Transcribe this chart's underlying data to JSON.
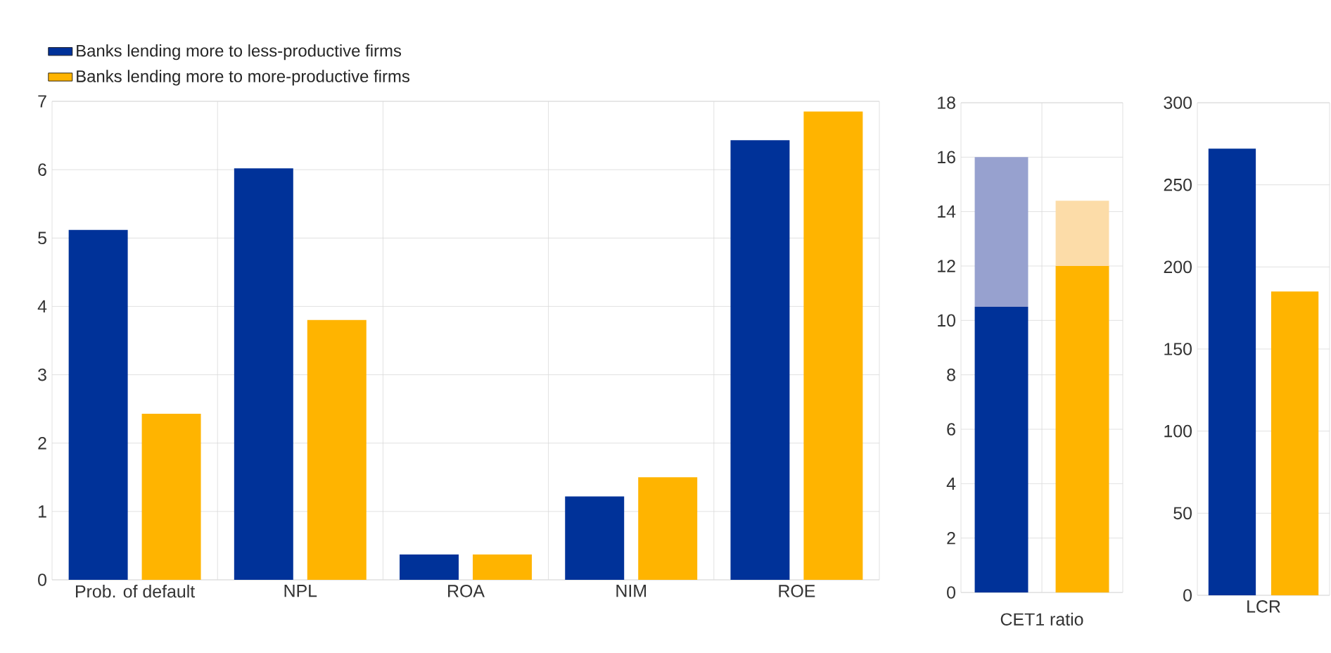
{
  "chart_data": [
    {
      "type": "bar",
      "categories": [
        "Prob. of default",
        "NPL",
        "ROA",
        "NIM",
        "ROE"
      ],
      "series": [
        {
          "name": "Banks lending more to less-productive firms",
          "color": "#003299",
          "values": [
            5.12,
            6.02,
            0.37,
            1.22,
            6.43
          ]
        },
        {
          "name": "Banks lending more to more-productive firms",
          "color": "#ffb400",
          "values": [
            2.43,
            3.8,
            0.37,
            1.5,
            6.85
          ]
        }
      ],
      "ylim": [
        0,
        7
      ],
      "yticks": [
        0,
        1,
        2,
        3,
        4,
        5,
        6,
        7
      ],
      "grid": true,
      "legend": "top left"
    },
    {
      "type": "bar",
      "categories": [
        null,
        null
      ],
      "xlabel": "CET1 ratio",
      "stacked": true,
      "series": [
        {
          "colors": [
            "#003299",
            "#ffb400"
          ],
          "values": [
            10.5,
            12
          ]
        },
        {
          "colors": [
            "#97a1cf",
            "#fcdca8"
          ],
          "values": [
            5.5,
            2.4
          ]
        }
      ],
      "ylim": [
        0,
        18
      ],
      "yticks": [
        0,
        2,
        4,
        6,
        8,
        10,
        12,
        14,
        16,
        18
      ],
      "grid": true
    },
    {
      "type": "bar",
      "categories": [
        "LCR"
      ],
      "series": [
        {
          "color": "#003299",
          "values": [
            272
          ]
        },
        {
          "color": "#ffb400",
          "values": [
            185
          ]
        }
      ],
      "ylim": [
        0,
        300
      ],
      "yticks": [
        0,
        50,
        100,
        150,
        200,
        250,
        300
      ],
      "grid": true
    }
  ]
}
